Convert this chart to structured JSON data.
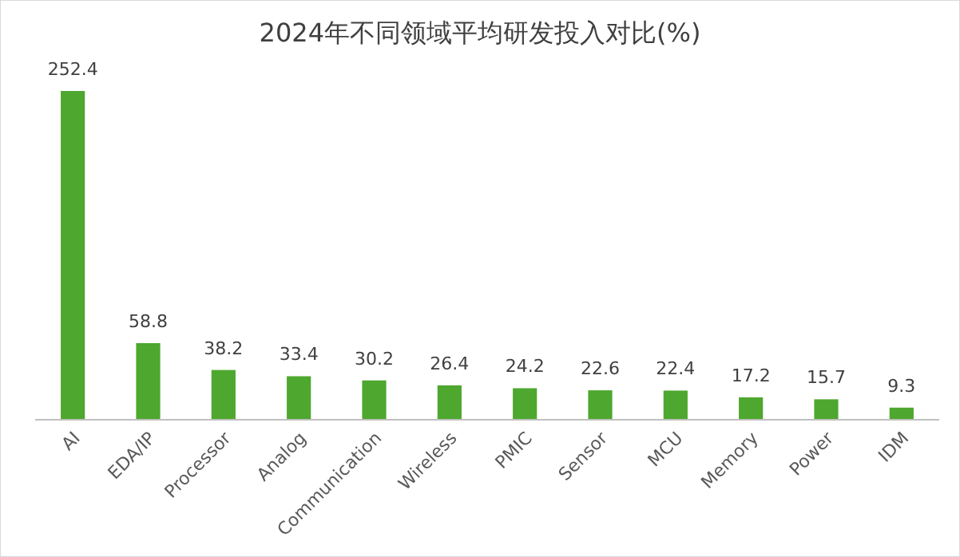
{
  "chart_data": {
    "type": "bar",
    "title": "2024年不同领域平均研发投入对比(%)",
    "categories": [
      "AI",
      "EDA/IP",
      "Processor",
      "Analog",
      "Communication",
      "Wireless",
      "PMIC",
      "Sensor",
      "MCU",
      "Memory",
      "Power",
      "IDM"
    ],
    "values": [
      252.4,
      58.8,
      38.2,
      33.4,
      30.2,
      26.4,
      24.2,
      22.6,
      22.4,
      17.2,
      15.7,
      9.3
    ],
    "color": "#4ea72e",
    "data_labels": true
  }
}
